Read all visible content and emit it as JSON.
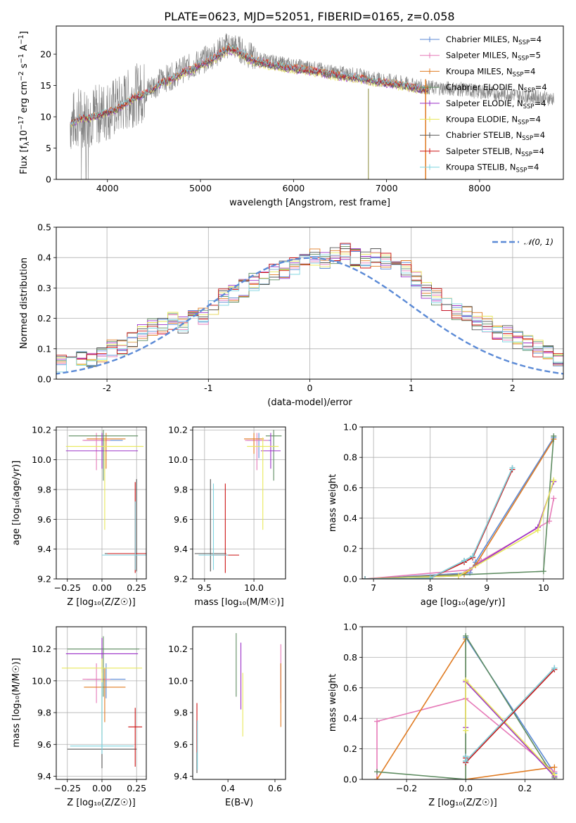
{
  "figure": {
    "title": "PLATE=0623, MJD=52051, FIBERID=0165, z=0.058"
  },
  "models": [
    {
      "id": "chabrier_miles",
      "label": "Chabrier MILES, N",
      "sub": "SSP",
      "suffix": "=4",
      "color": "#5b8ad6"
    },
    {
      "id": "salpeter_miles",
      "label": "Salpeter MILES, N",
      "sub": "SSP",
      "suffix": "=5",
      "color": "#e67ab8"
    },
    {
      "id": "kroupa_miles",
      "label": "Kroupa MILES, N",
      "sub": "SSP",
      "suffix": "=4",
      "color": "#e07b22"
    },
    {
      "id": "chabrier_elodie",
      "label": "Chabrier ELODIE, N",
      "sub": "SSP",
      "suffix": "=4",
      "color": "#5e8c61"
    },
    {
      "id": "salpeter_elodie",
      "label": "Salpeter ELODIE, N",
      "sub": "SSP",
      "suffix": "=4",
      "color": "#9b30c8"
    },
    {
      "id": "kroupa_elodie",
      "label": "Kroupa ELODIE, N",
      "sub": "SSP",
      "suffix": "=4",
      "color": "#e8e85a"
    },
    {
      "id": "chabrier_stelib",
      "label": "Chabrier STELIB, N",
      "sub": "SSP",
      "suffix": "=4",
      "color": "#555555"
    },
    {
      "id": "salpeter_stelib",
      "label": "Salpeter STELIB, N",
      "sub": "SSP",
      "suffix": "=4",
      "color": "#cc1111"
    },
    {
      "id": "kroupa_stelib",
      "label": "Kroupa STELIB, N",
      "sub": "SSP",
      "suffix": "=4",
      "color": "#7fd4e0"
    }
  ],
  "chart_data": [
    {
      "id": "spectrum",
      "type": "line",
      "xlabel": "wavelength [Angstrom, rest frame]",
      "ylabel": "Flux [f",
      "ylabel_parts": [
        "Flux [f",
        "λ",
        "10",
        "−17",
        " erg cm",
        "−2",
        " s",
        "−1",
        " A",
        "−1",
        "]"
      ],
      "xlim": [
        3450,
        8900
      ],
      "ylim": [
        0,
        24.5
      ],
      "xticks": [
        4000,
        5000,
        6000,
        7000,
        8000
      ],
      "yticks": [
        0,
        5,
        10,
        15,
        20
      ],
      "grid": false,
      "legend_position": "upper right",
      "data_color": "#808080",
      "continuum": [
        [
          3600,
          9.0
        ],
        [
          3700,
          10.0
        ],
        [
          3800,
          10.0
        ],
        [
          3900,
          10.5
        ],
        [
          4000,
          11.0
        ],
        [
          4100,
          11.5
        ],
        [
          4200,
          12.5
        ],
        [
          4300,
          13.5
        ],
        [
          4400,
          14.0
        ],
        [
          4500,
          15.0
        ],
        [
          4600,
          16.0
        ],
        [
          4700,
          16.5
        ],
        [
          4800,
          17.5
        ],
        [
          4900,
          18.0
        ],
        [
          5000,
          18.8
        ],
        [
          5100,
          19.5
        ],
        [
          5200,
          20.5
        ],
        [
          5300,
          21.5
        ],
        [
          5400,
          21.0
        ],
        [
          5500,
          20.0
        ],
        [
          5600,
          19.3
        ],
        [
          5700,
          19.0
        ],
        [
          5800,
          18.7
        ],
        [
          5900,
          18.4
        ],
        [
          6000,
          18.2
        ],
        [
          6100,
          18.0
        ],
        [
          6200,
          17.8
        ],
        [
          6300,
          17.5
        ],
        [
          6400,
          17.2
        ],
        [
          6500,
          17.0
        ],
        [
          6600,
          16.8
        ],
        [
          6700,
          16.6
        ],
        [
          6800,
          16.3
        ],
        [
          6900,
          16.0
        ],
        [
          7000,
          15.8
        ],
        [
          7100,
          15.6
        ],
        [
          7200,
          15.3
        ],
        [
          7300,
          15.0
        ],
        [
          7400,
          14.8
        ],
        [
          7500,
          14.6
        ],
        [
          7600,
          14.6
        ],
        [
          7700,
          14.5
        ],
        [
          7800,
          14.4
        ],
        [
          7900,
          14.2
        ],
        [
          8000,
          14.0
        ],
        [
          8100,
          13.9
        ],
        [
          8200,
          13.7
        ],
        [
          8300,
          13.6
        ],
        [
          8400,
          13.5
        ],
        [
          8500,
          13.3
        ],
        [
          8600,
          13.2
        ],
        [
          8700,
          13.0
        ],
        [
          8800,
          12.9
        ]
      ]
    },
    {
      "id": "residuals",
      "type": "histogram",
      "xlabel": "(data-model)/error",
      "ylabel": "Normed distribution",
      "xlim": [
        -2.5,
        2.5
      ],
      "ylim": [
        0,
        0.5
      ],
      "xticks": [
        -2,
        -1,
        0,
        1,
        2
      ],
      "yticks": [
        0.0,
        0.1,
        0.2,
        0.3,
        0.4,
        0.5
      ],
      "grid": true,
      "bin_width": 0.1,
      "normal_curve": {
        "label": "𝒩(0, 1)",
        "color": "#5b8ad6"
      },
      "legend_position": "upper right",
      "mean_profile": [
        0.02,
        0.02,
        0.03,
        0.035,
        0.04,
        0.05,
        0.055,
        0.065,
        0.07,
        0.08,
        0.1,
        0.11,
        0.13,
        0.15,
        0.17,
        0.175,
        0.19,
        0.18,
        0.2,
        0.21,
        0.24,
        0.27,
        0.28,
        0.3,
        0.32,
        0.33,
        0.35,
        0.36,
        0.37,
        0.39,
        0.4,
        0.39,
        0.41,
        0.42,
        0.4,
        0.39,
        0.4,
        0.39,
        0.38,
        0.36,
        0.33,
        0.29,
        0.27,
        0.25,
        0.22,
        0.21,
        0.19,
        0.18,
        0.16,
        0.15,
        0.13,
        0.12,
        0.1,
        0.09,
        0.07,
        0.06,
        0.05,
        0.05,
        0.045,
        0.04
      ]
    },
    {
      "id": "age_vs_Z",
      "type": "scatter",
      "xlabel": "Z [log₁₀(Z/Z☉)]",
      "ylabel": "age  [log₁₀(age/yr)]",
      "xlim": [
        -0.33,
        0.32
      ],
      "ylim": [
        9.2,
        10.22
      ],
      "xticks": [
        -0.25,
        0.0,
        0.25
      ],
      "xticklabels": [
        "−0.25",
        "0.00",
        "0.25"
      ],
      "yticks": [
        9.2,
        9.4,
        9.6,
        9.8,
        10.0,
        10.2
      ],
      "grid": true,
      "points": [
        {
          "m": "chabrier_miles",
          "x": 0.01,
          "y": 10.13,
          "xe": 0.14,
          "yl": 0.12,
          "yh": 0.05
        },
        {
          "m": "salpeter_miles",
          "x": -0.04,
          "y": 10.13,
          "xe": 0.1,
          "yl": 0.2,
          "yh": 0.05
        },
        {
          "m": "kroupa_miles",
          "x": 0.03,
          "y": 10.14,
          "xe": 0.14,
          "yl": 0.2,
          "yh": 0.04
        },
        {
          "m": "chabrier_elodie",
          "x": 0.01,
          "y": 10.16,
          "xe": 0.25,
          "yl": 0.3,
          "yh": 0.04
        },
        {
          "m": "salpeter_elodie",
          "x": 0.0,
          "y": 10.06,
          "xe": 0.26,
          "yl": 0.12,
          "yh": 0.12
        },
        {
          "m": "kroupa_elodie",
          "x": 0.02,
          "y": 10.09,
          "xe": 0.28,
          "yl": 0.56,
          "yh": 0.06
        },
        {
          "m": "chabrier_stelib",
          "x": 0.25,
          "y": 9.37,
          "xe": 0.23,
          "yl": 0.12,
          "yh": 0.5
        },
        {
          "m": "salpeter_stelib",
          "x": 0.24,
          "y": 9.37,
          "xe": 0.2,
          "yl": 0.13,
          "yh": 0.48
        },
        {
          "m": "kroupa_stelib",
          "x": 0.24,
          "y": 9.36,
          "xe": 0.24,
          "yl": 0.1,
          "yh": 0.36
        }
      ]
    },
    {
      "id": "age_vs_mass",
      "type": "scatter",
      "xlabel": "mass [log₁₀(M/M☉)]",
      "ylabel": "",
      "xlim": [
        9.38,
        10.32
      ],
      "ylim": [
        9.2,
        10.22
      ],
      "xticks": [
        9.5,
        10.0
      ],
      "xticklabels": [
        "9.5",
        "10.0"
      ],
      "yticks": [
        9.2,
        9.4,
        9.6,
        9.8,
        10.0,
        10.2
      ],
      "grid": true,
      "points": [
        {
          "m": "chabrier_miles",
          "x": 10.05,
          "y": 10.13,
          "xe": 0.12,
          "yl": 0.12,
          "yh": 0.05
        },
        {
          "m": "salpeter_miles",
          "x": 10.03,
          "y": 10.13,
          "xe": 0.12,
          "yl": 0.2,
          "yh": 0.05
        },
        {
          "m": "kroupa_miles",
          "x": 10.0,
          "y": 10.14,
          "xe": 0.1,
          "yl": 0.1,
          "yh": 0.04
        },
        {
          "m": "chabrier_elodie",
          "x": 10.2,
          "y": 10.16,
          "xe": 0.08,
          "yl": 0.3,
          "yh": 0.04
        },
        {
          "m": "salpeter_elodie",
          "x": 10.17,
          "y": 10.06,
          "xe": 0.1,
          "yl": 0.12,
          "yh": 0.12
        },
        {
          "m": "kroupa_elodie",
          "x": 10.09,
          "y": 10.09,
          "xe": 0.16,
          "yl": 0.56,
          "yh": 0.06
        },
        {
          "m": "chabrier_stelib",
          "x": 9.56,
          "y": 9.37,
          "xe": 0.16,
          "yl": 0.12,
          "yh": 0.5
        },
        {
          "m": "salpeter_stelib",
          "x": 9.71,
          "y": 9.36,
          "xe": 0.14,
          "yl": 0.12,
          "yh": 0.48
        },
        {
          "m": "kroupa_stelib",
          "x": 9.59,
          "y": 9.36,
          "xe": 0.15,
          "yl": 0.1,
          "yh": 0.48
        }
      ]
    },
    {
      "id": "mass_weight_vs_age",
      "type": "line",
      "xlabel": "age  [log₁₀(age/yr)]",
      "ylabel": "mass weight",
      "xlim": [
        6.8,
        10.35
      ],
      "ylim": [
        0,
        1
      ],
      "xticks": [
        7,
        8,
        9,
        10
      ],
      "yticks": [
        0.0,
        0.2,
        0.4,
        0.6,
        0.8,
        1.0
      ],
      "grid": true,
      "series": [
        {
          "m": "chabrier_miles",
          "x": [
            6.85,
            8.7,
            8.8,
            10.18
          ],
          "y": [
            0.0,
            0.04,
            0.11,
            0.93
          ]
        },
        {
          "m": "salpeter_miles",
          "x": [
            6.85,
            8.7,
            8.9,
            10.1,
            10.18
          ],
          "y": [
            0.0,
            0.06,
            0.12,
            0.38,
            0.53
          ]
        },
        {
          "m": "kroupa_miles",
          "x": [
            6.85,
            8.6,
            8.8,
            10.18
          ],
          "y": [
            0.0,
            0.03,
            0.09,
            0.92
          ]
        },
        {
          "m": "chabrier_elodie",
          "x": [
            6.85,
            10.0,
            10.18
          ],
          "y": [
            0.0,
            0.05,
            0.94
          ]
        },
        {
          "m": "salpeter_elodie",
          "x": [
            6.85,
            8.5,
            9.9,
            10.18
          ],
          "y": [
            0.0,
            0.02,
            0.34,
            0.64
          ]
        },
        {
          "m": "kroupa_elodie",
          "x": [
            6.85,
            8.5,
            9.9,
            10.18
          ],
          "y": [
            0.0,
            0.02,
            0.32,
            0.65
          ]
        },
        {
          "m": "chabrier_stelib",
          "x": [
            6.85,
            8.0,
            8.6,
            8.75,
            9.45
          ],
          "y": [
            0.0,
            0.005,
            0.12,
            0.15,
            0.73
          ]
        },
        {
          "m": "salpeter_stelib",
          "x": [
            6.85,
            8.0,
            8.6,
            8.75,
            9.45
          ],
          "y": [
            0.0,
            0.005,
            0.11,
            0.14,
            0.72
          ]
        },
        {
          "m": "kroupa_stelib",
          "x": [
            6.85,
            8.0,
            8.6,
            8.75,
            9.45
          ],
          "y": [
            0.0,
            0.005,
            0.12,
            0.15,
            0.73
          ]
        }
      ]
    },
    {
      "id": "mass_vs_Z",
      "type": "scatter",
      "xlabel": "Z [log₁₀(Z/Z☉)]",
      "ylabel": "mass [log₁₀(M/M☉)]",
      "xlim": [
        -0.33,
        0.32
      ],
      "ylim": [
        9.38,
        10.34
      ],
      "xticks": [
        -0.25,
        0.0,
        0.25
      ],
      "xticklabels": [
        "−0.25",
        "0.00",
        "0.25"
      ],
      "yticks": [
        9.4,
        9.6,
        9.8,
        10.0,
        10.2
      ],
      "grid": true,
      "points": [
        {
          "m": "chabrier_miles",
          "x": 0.03,
          "y": 10.01,
          "xe": 0.14,
          "yl": 0.12,
          "yh": 0.1
        },
        {
          "m": "salpeter_miles",
          "x": -0.04,
          "y": 10.01,
          "xe": 0.1,
          "yl": 0.15,
          "yh": 0.1
        },
        {
          "m": "kroupa_miles",
          "x": 0.02,
          "y": 9.96,
          "xe": 0.15,
          "yl": 0.22,
          "yh": 0.12
        },
        {
          "m": "chabrier_elodie",
          "x": 0.01,
          "y": 10.2,
          "xe": 0.26,
          "yl": 0.3,
          "yh": 0.08
        },
        {
          "m": "salpeter_elodie",
          "x": 0.0,
          "y": 10.17,
          "xe": 0.26,
          "yl": 0.12,
          "yh": 0.1
        },
        {
          "m": "kroupa_elodie",
          "x": 0.0,
          "y": 10.08,
          "xe": 0.29,
          "yl": 0.42,
          "yh": 0.06
        },
        {
          "m": "chabrier_stelib",
          "x": 0.0,
          "y": 9.57,
          "xe": 0.25,
          "yl": 0.12,
          "yh": 0.42
        },
        {
          "m": "salpeter_stelib",
          "x": 0.24,
          "y": 9.71,
          "xe": 0.05,
          "yl": 0.25,
          "yh": 0.12
        },
        {
          "m": "kroupa_stelib",
          "x": 0.0,
          "y": 9.59,
          "xe": 0.23,
          "yl": 0.05,
          "yh": 0.4
        }
      ]
    },
    {
      "id": "mass_vs_ebv",
      "type": "scatter",
      "xlabel": "E(B-V)",
      "ylabel": "",
      "xlim": [
        0.25,
        0.645
      ],
      "ylim": [
        9.38,
        10.34
      ],
      "xticks": [
        0.4,
        0.6
      ],
      "xticklabels": [
        "0.4",
        "0.6"
      ],
      "yticks": [
        9.4,
        9.6,
        9.8,
        10.0,
        10.2
      ],
      "grid": false,
      "points": [
        {
          "m": "chabrier_miles",
          "x": 0.625,
          "y": 10.01,
          "xe": 0,
          "yl": 0.12,
          "yh": 0.1
        },
        {
          "m": "salpeter_miles",
          "x": 0.625,
          "y": 10.01,
          "xe": 0,
          "yl": 0.15,
          "yh": 0.22
        },
        {
          "m": "kroupa_miles",
          "x": 0.625,
          "y": 9.96,
          "xe": 0,
          "yl": 0.25,
          "yh": 0.15
        },
        {
          "m": "chabrier_elodie",
          "x": 0.435,
          "y": 10.1,
          "xe": 0,
          "yl": 0.2,
          "yh": 0.2
        },
        {
          "m": "salpeter_elodie",
          "x": 0.455,
          "y": 10.02,
          "xe": 0,
          "yl": 0.2,
          "yh": 0.22
        },
        {
          "m": "kroupa_elodie",
          "x": 0.463,
          "y": 9.85,
          "xe": 0,
          "yl": 0.2,
          "yh": 0.2
        },
        {
          "m": "chabrier_stelib",
          "x": 0.268,
          "y": 9.6,
          "xe": 0,
          "yl": 0.18,
          "yh": 0.15
        },
        {
          "m": "salpeter_stelib",
          "x": 0.268,
          "y": 9.75,
          "xe": 0,
          "yl": 0.2,
          "yh": 0.11
        },
        {
          "m": "kroupa_stelib",
          "x": 0.27,
          "y": 9.6,
          "xe": 0,
          "yl": 0.16,
          "yh": 0.15
        }
      ]
    },
    {
      "id": "mass_weight_vs_Z",
      "type": "line",
      "xlabel": "Z [log₁₀(Z/Z☉)]",
      "ylabel": "mass weight",
      "xlim": [
        -0.35,
        0.33
      ],
      "ylim": [
        0,
        1
      ],
      "xticks": [
        -0.2,
        0.0,
        0.2
      ],
      "xticklabels": [
        "−0.2",
        "0.0",
        "0.2"
      ],
      "yticks": [
        0.0,
        0.2,
        0.4,
        0.6,
        0.8,
        1.0
      ],
      "grid": true,
      "series": [
        {
          "m": "chabrier_miles",
          "x": [
            0.0,
            0.0,
            0.3
          ],
          "y": [
            0.11,
            0.93,
            0.04
          ]
        },
        {
          "m": "salpeter_miles",
          "x": [
            -0.3,
            -0.3,
            0.0,
            0.3
          ],
          "y": [
            0.0,
            0.38,
            0.53,
            0.05
          ]
        },
        {
          "m": "kroupa_miles",
          "x": [
            -0.3,
            0.0,
            0.0,
            0.3
          ],
          "y": [
            0.0,
            0.92,
            0.0,
            0.08
          ]
        },
        {
          "m": "chabrier_elodie",
          "x": [
            -0.3,
            0.0,
            0.0,
            0.3
          ],
          "y": [
            0.05,
            0.0,
            0.94,
            0.01
          ]
        },
        {
          "m": "salpeter_elodie",
          "x": [
            0.0,
            0.0,
            0.3
          ],
          "y": [
            0.34,
            0.64,
            0.02
          ]
        },
        {
          "m": "kroupa_elodie",
          "x": [
            0.0,
            0.0,
            0.3
          ],
          "y": [
            0.32,
            0.65,
            0.03
          ]
        },
        {
          "m": "chabrier_stelib",
          "x": [
            0.0,
            0.0,
            0.3
          ],
          "y": [
            0.15,
            0.12,
            0.73
          ]
        },
        {
          "m": "salpeter_stelib",
          "x": [
            0.0,
            0.0,
            0.3
          ],
          "y": [
            0.14,
            0.11,
            0.72
          ]
        },
        {
          "m": "kroupa_stelib",
          "x": [
            0.0,
            0.0,
            0.3
          ],
          "y": [
            0.15,
            0.12,
            0.73
          ]
        }
      ]
    }
  ]
}
